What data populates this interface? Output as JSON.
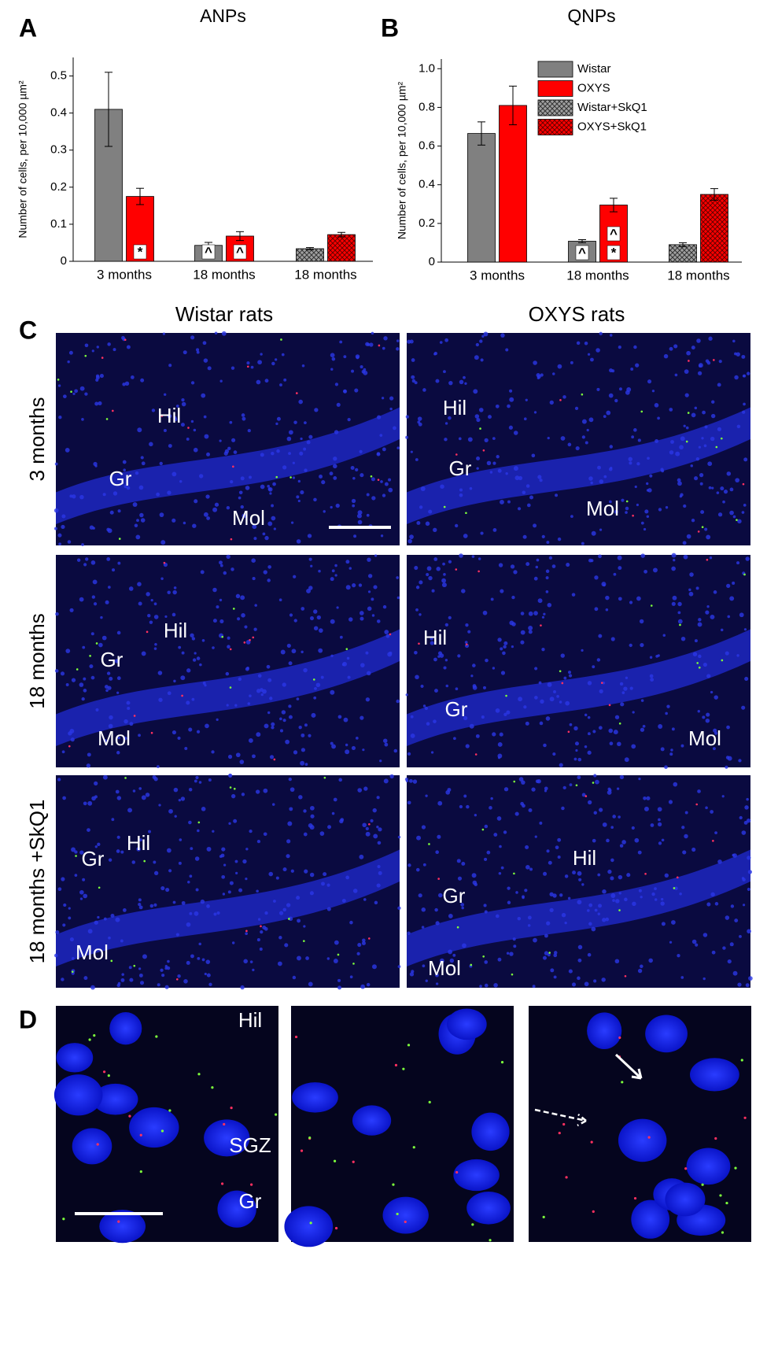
{
  "chart_data": [
    {
      "type": "bar",
      "panel": "A",
      "title": "ANPs",
      "y_label": "Number of cells, per 10,000 µm²",
      "categories": [
        "3 months",
        "18 months",
        "18 months"
      ],
      "series": [
        {
          "name": "Wistar",
          "color": "#808080",
          "hatch": false,
          "values": [
            0.41,
            0.043,
            null
          ],
          "errors": [
            0.1,
            0.008,
            null
          ],
          "signs": [
            null,
            [
              "^"
            ],
            null
          ]
        },
        {
          "name": "OXYS",
          "color": "#ff0000",
          "hatch": false,
          "values": [
            0.175,
            0.068,
            null
          ],
          "errors": [
            0.022,
            0.012,
            null
          ],
          "signs": [
            [
              "*"
            ],
            [
              "^"
            ],
            null
          ]
        },
        {
          "name": "Wistar+SkQ1",
          "color": "#808080",
          "hatch": true,
          "values": [
            null,
            null,
            0.034
          ],
          "errors": [
            null,
            null,
            0.003
          ],
          "signs": [
            null,
            null,
            null
          ]
        },
        {
          "name": "OXYS+SkQ1",
          "color": "#ff0000",
          "hatch": true,
          "values": [
            null,
            null,
            0.072
          ],
          "errors": [
            null,
            null,
            0.006
          ],
          "signs": [
            null,
            null,
            null
          ]
        }
      ],
      "ylim": [
        0,
        0.55
      ],
      "yticks": [
        0,
        0.1,
        0.2,
        0.3,
        0.4,
        0.5
      ],
      "legend": false
    },
    {
      "type": "bar",
      "panel": "B",
      "title": "QNPs",
      "y_label": "Number of cells, per 10,000 µm²",
      "categories": [
        "3 months",
        "18 months",
        "18 months"
      ],
      "series": [
        {
          "name": "Wistar",
          "color": "#808080",
          "hatch": false,
          "values": [
            0.665,
            0.108,
            null
          ],
          "errors": [
            0.06,
            0.008,
            null
          ],
          "signs": [
            null,
            [
              "^"
            ],
            null
          ]
        },
        {
          "name": "OXYS",
          "color": "#ff0000",
          "hatch": false,
          "values": [
            0.81,
            0.295,
            null
          ],
          "errors": [
            0.1,
            0.035,
            null
          ],
          "signs": [
            null,
            [
              "^",
              "*"
            ],
            null
          ]
        },
        {
          "name": "Wistar+SkQ1",
          "color": "#808080",
          "hatch": true,
          "values": [
            null,
            null,
            0.09
          ],
          "errors": [
            null,
            null,
            0.01
          ],
          "signs": [
            null,
            null,
            null
          ]
        },
        {
          "name": "OXYS+SkQ1",
          "color": "#ff0000",
          "hatch": true,
          "values": [
            null,
            null,
            0.35
          ],
          "errors": [
            null,
            null,
            0.03
          ],
          "signs": [
            null,
            null,
            null
          ]
        }
      ],
      "ylim": [
        0,
        1.05
      ],
      "yticks": [
        0,
        0.2,
        0.4,
        0.6,
        0.8,
        {
          "value": 1,
          "label": "1.0"
        }
      ],
      "legend": true
    }
  ],
  "panel_c": {
    "label": "C",
    "columns": [
      "Wistar rats",
      "OXYS rats"
    ],
    "rows": [
      "3 months",
      "18 months",
      "18 months +SkQ1"
    ],
    "images": [
      [
        [
          "Hil",
          "Gr",
          "Mol"
        ],
        [
          "Hil",
          "Gr",
          "Mol"
        ]
      ],
      [
        [
          "Hil",
          "Gr",
          "Mol"
        ],
        [
          "Hil",
          "Gr",
          "Mol"
        ]
      ],
      [
        [
          "Hil",
          "Gr",
          "Mol"
        ],
        [
          "Hil",
          "Gr",
          "Mol"
        ]
      ]
    ]
  },
  "panel_d": {
    "label": "D",
    "labels": [
      "Hil",
      "SGZ",
      "Gr"
    ]
  }
}
